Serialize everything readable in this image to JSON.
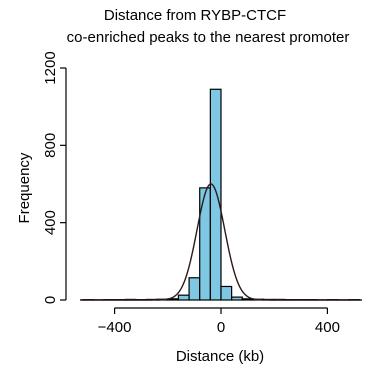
{
  "chart_data": {
    "type": "bar",
    "title": [
      "Distance from RYBP-CTCF",
      "co-enriched peaks to the nearest promoter"
    ],
    "xlabel": "Distance (kb)",
    "ylabel": "Frequency",
    "xlim": [
      -530,
      530
    ],
    "ylim": [
      0,
      1200
    ],
    "xticks": [
      -400,
      0,
      400
    ],
    "xtick_labels": [
      "−400",
      "0",
      "400"
    ],
    "yticks": [
      0,
      400,
      800,
      1200
    ],
    "ytick_labels": [
      "0",
      "400",
      "800",
      "1200"
    ],
    "bin_width": 40,
    "bins": [
      {
        "x0": -520,
        "x1": -480,
        "count": 2
      },
      {
        "x0": -480,
        "x1": -440,
        "count": 1
      },
      {
        "x0": -440,
        "x1": -400,
        "count": 2
      },
      {
        "x0": -400,
        "x1": -360,
        "count": 2
      },
      {
        "x0": -360,
        "x1": -320,
        "count": 3
      },
      {
        "x0": -320,
        "x1": -280,
        "count": 2
      },
      {
        "x0": -280,
        "x1": -240,
        "count": 3
      },
      {
        "x0": -240,
        "x1": -200,
        "count": 4
      },
      {
        "x0": -200,
        "x1": -160,
        "count": 6
      },
      {
        "x0": -160,
        "x1": -120,
        "count": 25
      },
      {
        "x0": -120,
        "x1": -80,
        "count": 115
      },
      {
        "x0": -80,
        "x1": -40,
        "count": 580
      },
      {
        "x0": -40,
        "x1": 0,
        "count": 1090
      },
      {
        "x0": 0,
        "x1": 40,
        "count": 70
      },
      {
        "x0": 40,
        "x1": 80,
        "count": 15
      },
      {
        "x0": 80,
        "x1": 120,
        "count": 6
      },
      {
        "x0": 120,
        "x1": 160,
        "count": 4
      },
      {
        "x0": 160,
        "x1": 200,
        "count": 3
      },
      {
        "x0": 200,
        "x1": 240,
        "count": 3
      },
      {
        "x0": 240,
        "x1": 280,
        "count": 2
      },
      {
        "x0": 280,
        "x1": 320,
        "count": 2
      },
      {
        "x0": 320,
        "x1": 360,
        "count": 2
      },
      {
        "x0": 360,
        "x1": 400,
        "count": 1
      },
      {
        "x0": 400,
        "x1": 440,
        "count": 2
      },
      {
        "x0": 440,
        "x1": 480,
        "count": 1
      },
      {
        "x0": 480,
        "x1": 520,
        "count": 2
      }
    ],
    "fit_curve": {
      "type": "normal",
      "mean": -38,
      "sd": 52,
      "peak": 600
    },
    "colors": {
      "bar_fill": "#7ec8e3",
      "bar_stroke": "#000000",
      "curve": "#2a1a1a"
    },
    "grid": false
  }
}
